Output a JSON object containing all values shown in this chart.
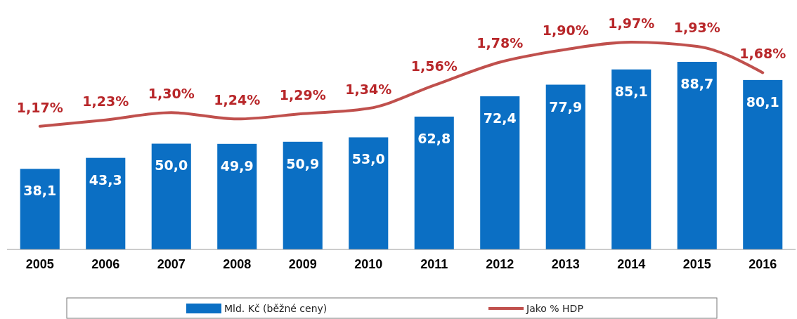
{
  "chart_data": {
    "type": "bar",
    "categories": [
      "2005",
      "2006",
      "2007",
      "2008",
      "2009",
      "2010",
      "2011",
      "2012",
      "2013",
      "2014",
      "2015",
      "2016"
    ],
    "series": [
      {
        "name": "Mld. Kč (běžné ceny)",
        "color": "#0b6fc4",
        "values": [
          38.1,
          43.3,
          50.0,
          49.9,
          50.9,
          53.0,
          62.8,
          72.4,
          77.9,
          85.1,
          88.7,
          80.1
        ],
        "value_labels": [
          "38,1",
          "43,3",
          "50,0",
          "49,9",
          "50,9",
          "53,0",
          "62,8",
          "72,4",
          "77,9",
          "85,1",
          "88,7",
          "80,1"
        ]
      },
      {
        "name": "Jako % HDP",
        "type": "line",
        "axis": "y2",
        "color": "#c0504d",
        "values": [
          1.17,
          1.23,
          1.3,
          1.24,
          1.29,
          1.34,
          1.56,
          1.78,
          1.9,
          1.97,
          1.93,
          1.68
        ],
        "value_labels": [
          "1,17%",
          "1,23%",
          "1,30%",
          "1,24%",
          "1,29%",
          "1,34%",
          "1,56%",
          "1,78%",
          "1,90%",
          "1,97%",
          "1,93%",
          "1,68%"
        ]
      }
    ],
    "tick_labels": "x",
    "legend": "bottom"
  }
}
